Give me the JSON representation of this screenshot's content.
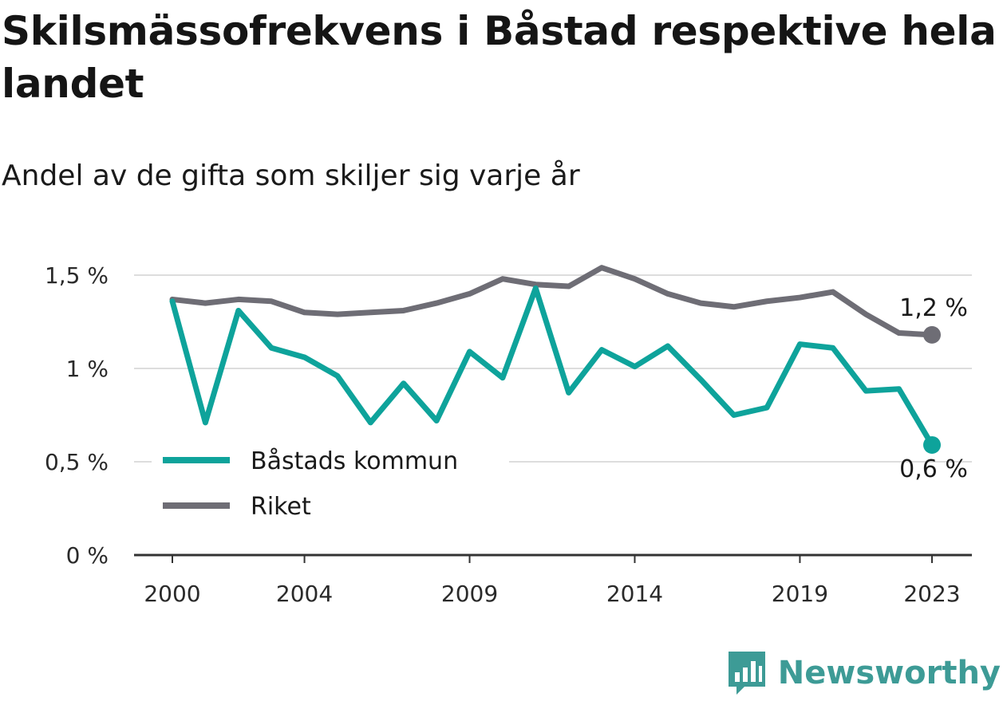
{
  "colors": {
    "basta": "#0ea39b",
    "riket": "#6e6d75",
    "grid": "#dddddd",
    "axis": "#333333",
    "brand": "#3d9b96"
  },
  "brand": {
    "name": "Newsworthy",
    "icon": "bar-chart-speech-bubble-icon"
  },
  "chart_data": {
    "type": "line",
    "title": "Skilsmässofrekvens i Båstad respektive hela landet",
    "subtitle": "Andel av de gifta som skiljer sig varje år",
    "x": [
      2000,
      2001,
      2002,
      2003,
      2004,
      2005,
      2006,
      2007,
      2008,
      2009,
      2010,
      2011,
      2012,
      2013,
      2014,
      2015,
      2016,
      2017,
      2018,
      2019,
      2020,
      2021,
      2022,
      2023
    ],
    "xticks": [
      2000,
      2004,
      2009,
      2014,
      2019,
      2023
    ],
    "xtick_labels": [
      "2000",
      "2004",
      "2009",
      "2014",
      "2019",
      "2023"
    ],
    "yticks": [
      0,
      0.5,
      1,
      1.5
    ],
    "ytick_labels": [
      "0 %",
      "0,5 %",
      "1 %",
      "1,5 %"
    ],
    "ylim": [
      0,
      1.5
    ],
    "grid": true,
    "legend_position": "bottom-left",
    "series": [
      {
        "name": "Båstads kommun",
        "color": "#0ea39b",
        "values": [
          1.36,
          0.71,
          1.31,
          1.11,
          1.06,
          0.96,
          0.71,
          0.92,
          0.72,
          1.09,
          0.95,
          1.43,
          0.87,
          1.1,
          1.01,
          1.12,
          0.94,
          0.75,
          0.79,
          1.13,
          1.11,
          0.88,
          0.89,
          0.59
        ],
        "end_label": "0,6 %"
      },
      {
        "name": "Riket",
        "color": "#6e6d75",
        "values": [
          1.37,
          1.35,
          1.37,
          1.36,
          1.3,
          1.29,
          1.3,
          1.31,
          1.35,
          1.4,
          1.48,
          1.45,
          1.44,
          1.54,
          1.48,
          1.4,
          1.35,
          1.33,
          1.36,
          1.38,
          1.41,
          1.29,
          1.19,
          1.18
        ],
        "end_label": "1,2 %"
      }
    ]
  }
}
